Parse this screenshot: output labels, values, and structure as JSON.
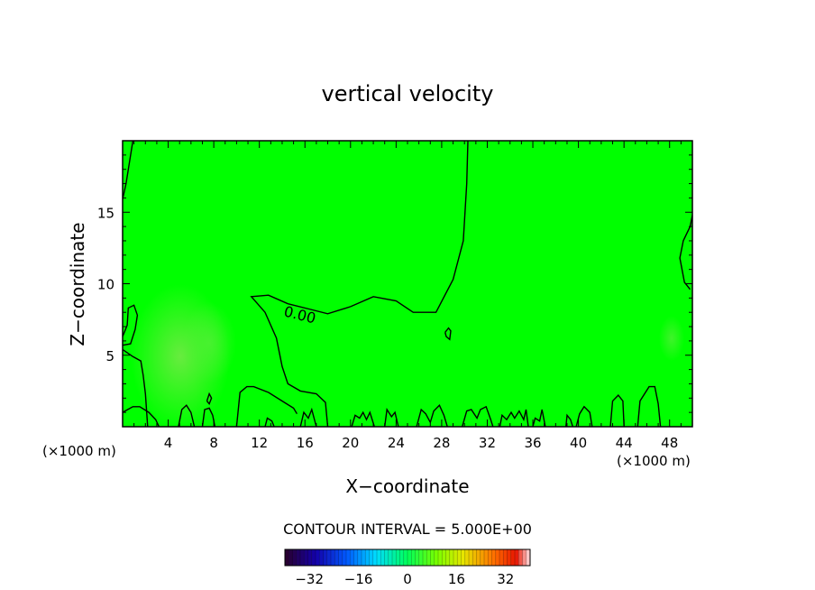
{
  "chart_data": {
    "type": "heatmap",
    "title": "vertical velocity",
    "xlabel": "X−coordinate",
    "ylabel": "Z−coordinate",
    "xunit_left": "(×1000 m)",
    "xunit_right": "(×1000 m)",
    "xlim": [
      0,
      50
    ],
    "ylim": [
      0,
      20
    ],
    "xticks": [
      4,
      8,
      12,
      16,
      20,
      24,
      28,
      32,
      36,
      40,
      44,
      48
    ],
    "yticks": [
      5,
      10,
      15
    ],
    "xtick_labels": [
      "4",
      "8",
      "12",
      "16",
      "20",
      "24",
      "28",
      "32",
      "36",
      "40",
      "44",
      "48"
    ],
    "ytick_labels": [
      "5",
      "10",
      "15"
    ],
    "field_color": "#00ff00",
    "contour_label": "0.00",
    "contour_interval_text": "CONTOUR INTERVAL = 5.000E+00",
    "colorbar": {
      "min": -40,
      "max": 40,
      "ticks": [
        -32,
        -16,
        0,
        16,
        32
      ],
      "tick_labels": [
        "−32",
        "−16",
        "0",
        "16",
        "32"
      ]
    },
    "zero_contours": [
      [
        [
          30.3,
          20
        ],
        [
          30.2,
          17
        ],
        [
          29.9,
          13
        ],
        [
          29.0,
          10.3
        ],
        [
          27.5,
          8.0
        ],
        [
          25.5,
          8.0
        ],
        [
          24,
          8.8
        ],
        [
          22,
          9.1
        ],
        [
          20,
          8.4
        ],
        [
          18,
          7.9
        ],
        [
          16.5,
          8.2
        ],
        [
          14.5,
          8.6
        ],
        [
          12.8,
          9.2
        ],
        [
          11.3,
          9.1
        ],
        [
          12.5,
          8.0
        ],
        [
          13.5,
          6.2
        ],
        [
          14.0,
          4.2
        ],
        [
          14.5,
          3.0
        ],
        [
          15.6,
          2.5
        ],
        [
          17.0,
          2.3
        ],
        [
          17.8,
          1.7
        ],
        [
          18.0,
          0
        ]
      ],
      [
        [
          0,
          15.9
        ],
        [
          0.3,
          17
        ],
        [
          0.6,
          18.5
        ],
        [
          0.9,
          20
        ]
      ],
      [
        [
          0,
          6.3
        ],
        [
          0.4,
          7.1
        ],
        [
          0.5,
          8.3
        ],
        [
          1.0,
          8.5
        ],
        [
          1.3,
          7.8
        ],
        [
          1.1,
          6.8
        ],
        [
          0.7,
          5.8
        ],
        [
          0.0,
          5.7
        ]
      ],
      [
        [
          0,
          5.4
        ],
        [
          0.9,
          4.9
        ],
        [
          1.6,
          4.6
        ],
        [
          1.8,
          3.6
        ],
        [
          2.0,
          2.3
        ],
        [
          2.2,
          0.0
        ]
      ],
      [
        [
          0,
          1.0
        ],
        [
          0.9,
          1.4
        ],
        [
          1.5,
          1.4
        ],
        [
          2.3,
          1.0
        ],
        [
          2.9,
          0.5
        ],
        [
          3.2,
          0
        ]
      ],
      [
        [
          4.9,
          0
        ],
        [
          5.2,
          1.2
        ],
        [
          5.6,
          1.5
        ],
        [
          6.0,
          1.0
        ],
        [
          6.3,
          0
        ]
      ],
      [
        [
          7.0,
          0
        ],
        [
          7.2,
          1.2
        ],
        [
          7.6,
          1.3
        ],
        [
          7.9,
          0.8
        ],
        [
          8.1,
          0
        ]
      ],
      [
        [
          10.0,
          0
        ],
        [
          10.3,
          2.4
        ],
        [
          10.9,
          2.8
        ],
        [
          11.5,
          2.8
        ],
        [
          12.8,
          2.4
        ],
        [
          14.2,
          1.7
        ],
        [
          15.0,
          1.3
        ],
        [
          15.3,
          0.9
        ]
      ],
      [
        [
          49.8,
          9.6
        ],
        [
          49.3,
          10.1
        ],
        [
          48.9,
          11.8
        ],
        [
          49.2,
          13.0
        ],
        [
          49.8,
          14.0
        ],
        [
          50,
          14.8
        ]
      ],
      [
        [
          42.8,
          0
        ],
        [
          43.0,
          1.8
        ],
        [
          43.5,
          2.2
        ],
        [
          43.9,
          1.8
        ],
        [
          44.0,
          0
        ]
      ],
      [
        [
          45.2,
          0
        ],
        [
          45.4,
          1.8
        ],
        [
          46.2,
          2.8
        ],
        [
          46.7,
          2.8
        ],
        [
          47.0,
          1.6
        ],
        [
          47.2,
          0
        ]
      ],
      [
        [
          28.3,
          6.6
        ],
        [
          28.6,
          6.9
        ],
        [
          28.8,
          6.7
        ],
        [
          28.7,
          6.1
        ],
        [
          28.4,
          6.3
        ],
        [
          28.3,
          6.6
        ]
      ],
      [
        [
          25.8,
          0
        ],
        [
          26.2,
          1.2
        ],
        [
          26.6,
          0.9
        ],
        [
          27.0,
          0.3
        ],
        [
          27.3,
          1.1
        ],
        [
          27.8,
          1.5
        ],
        [
          28.2,
          0.8
        ],
        [
          28.5,
          0
        ]
      ],
      [
        [
          29.8,
          0
        ],
        [
          30.2,
          1.1
        ],
        [
          30.6,
          1.2
        ],
        [
          31.1,
          0.6
        ],
        [
          31.4,
          1.2
        ],
        [
          31.9,
          1.4
        ],
        [
          32.3,
          0.5
        ],
        [
          32.5,
          0
        ]
      ],
      [
        [
          33.1,
          0
        ],
        [
          33.3,
          0.8
        ],
        [
          33.7,
          0.5
        ],
        [
          34.1,
          1.0
        ],
        [
          34.4,
          0.6
        ],
        [
          34.8,
          1.1
        ],
        [
          35.2,
          0.5
        ],
        [
          35.4,
          1.2
        ],
        [
          35.6,
          0
        ]
      ],
      [
        [
          36.0,
          0
        ],
        [
          36.2,
          0.6
        ],
        [
          36.6,
          0.4
        ],
        [
          36.8,
          1.2
        ],
        [
          37.1,
          0
        ]
      ],
      [
        [
          20.1,
          0
        ],
        [
          20.4,
          0.8
        ],
        [
          20.8,
          0.6
        ],
        [
          21.1,
          1.0
        ],
        [
          21.4,
          0.5
        ],
        [
          21.7,
          1.0
        ],
        [
          22.1,
          0
        ]
      ],
      [
        [
          23.0,
          0
        ],
        [
          23.2,
          1.2
        ],
        [
          23.6,
          0.7
        ],
        [
          23.9,
          1.0
        ],
        [
          24.2,
          0
        ]
      ],
      [
        [
          15.6,
          0
        ],
        [
          15.9,
          1.0
        ],
        [
          16.3,
          0.6
        ],
        [
          16.6,
          1.2
        ],
        [
          17.0,
          0
        ]
      ],
      [
        [
          12.5,
          0
        ],
        [
          12.7,
          0.6
        ],
        [
          13.1,
          0.4
        ],
        [
          13.3,
          0
        ]
      ],
      [
        [
          38.9,
          0
        ],
        [
          39.0,
          0.8
        ],
        [
          39.3,
          0.5
        ],
        [
          39.5,
          0
        ]
      ],
      [
        [
          39.8,
          0
        ],
        [
          40.1,
          0.9
        ],
        [
          40.5,
          1.4
        ],
        [
          41.0,
          1.0
        ],
        [
          41.2,
          0
        ]
      ],
      [
        [
          7.4,
          1.8
        ],
        [
          7.6,
          2.3
        ],
        [
          7.8,
          2.0
        ],
        [
          7.6,
          1.6
        ],
        [
          7.4,
          1.8
        ]
      ]
    ]
  }
}
